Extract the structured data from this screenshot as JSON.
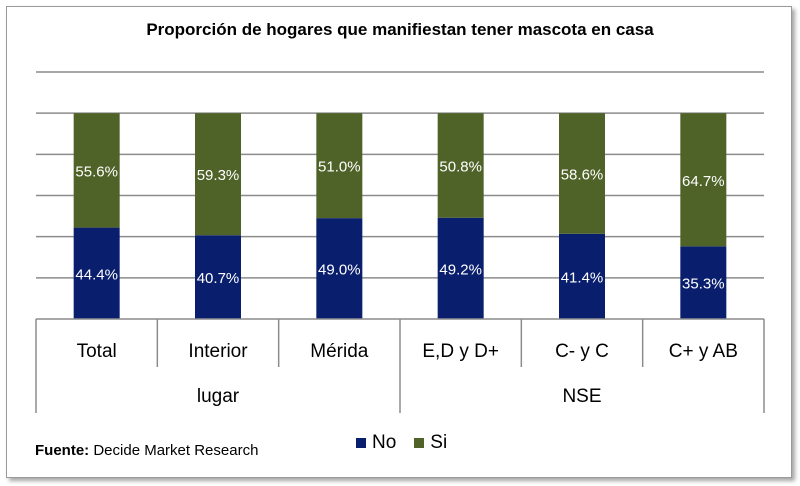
{
  "chart_data": {
    "type": "bar",
    "stacked": true,
    "percent": true,
    "title": "Proporción de hogares que manifiestan tener mascota en casa",
    "categories": [
      "Total",
      "Interior",
      "Mérida",
      "E,D y D+",
      "C- y C",
      "C+ y AB"
    ],
    "groups": [
      {
        "label": "lugar",
        "categories": [
          "Total",
          "Interior",
          "Mérida"
        ]
      },
      {
        "label": "NSE",
        "categories": [
          "E,D y D+",
          "C- y C",
          "C+ y AB"
        ]
      }
    ],
    "series": [
      {
        "name": "No",
        "color": "#0a1e6e",
        "values": [
          44.4,
          40.7,
          49.0,
          49.2,
          41.4,
          35.3
        ],
        "labels": [
          "44.4%",
          "40.7%",
          "49.0%",
          "49.2%",
          "41.4%",
          "35.3%"
        ]
      },
      {
        "name": "Si",
        "color": "#4f6228",
        "values": [
          55.6,
          59.3,
          51.0,
          50.8,
          58.6,
          64.7
        ],
        "labels": [
          "55.6%",
          "59.3%",
          "51.0%",
          "50.8%",
          "58.6%",
          "64.7%"
        ]
      }
    ],
    "ylim": [
      0,
      120
    ],
    "grid": true,
    "legend_position": "bottom"
  },
  "source": {
    "prefix": "Fuente:",
    "text": "Decide Market Research"
  }
}
